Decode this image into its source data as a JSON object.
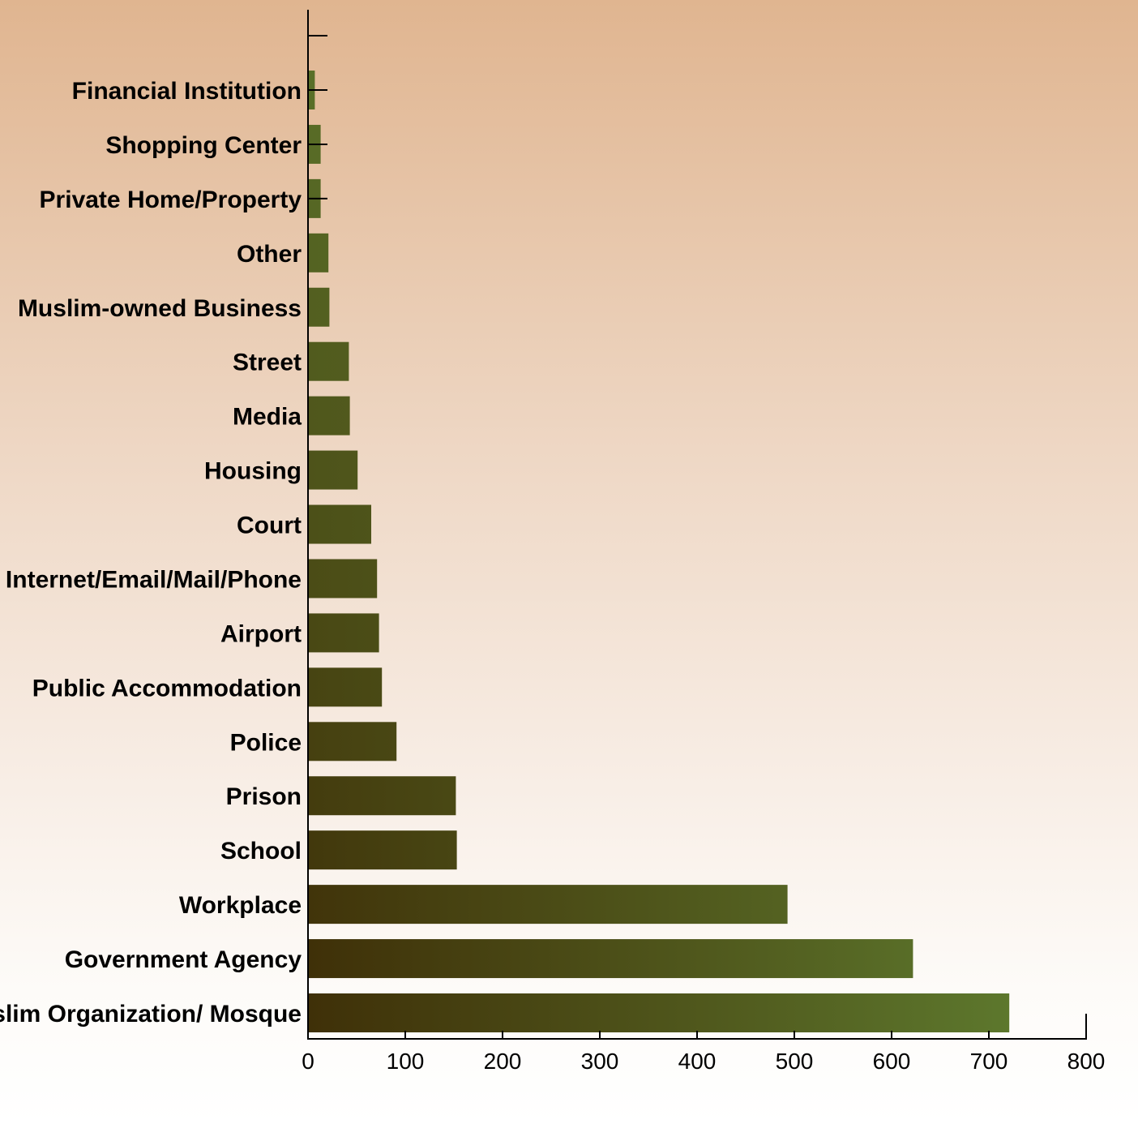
{
  "chart_data": {
    "type": "bar",
    "orientation": "horizontal",
    "title": "",
    "xlabel": "",
    "ylabel": "",
    "xlim": [
      0,
      800
    ],
    "x_ticks": [
      0,
      100,
      200,
      300,
      400,
      500,
      600,
      700,
      800
    ],
    "grid": false,
    "categories": [
      "Financial Institution",
      "Shopping Center",
      "Private Home/Property",
      "Other",
      "Muslim-owned Business",
      "Street",
      "Media",
      "Housing",
      "Court",
      "Internet/Email/Mail/Phone",
      "Airport",
      "Public Accommodation",
      "Police",
      "Prison",
      "School",
      "Workplace",
      "Government Agency",
      "Muslim Organization/ Mosque"
    ],
    "values": [
      7,
      13,
      13,
      21,
      22,
      42,
      43,
      51,
      65,
      71,
      73,
      76,
      91,
      152,
      153,
      493,
      622,
      721
    ],
    "colors": {
      "bar_light": "#5e7a2e",
      "bar_dark": "#3f3008",
      "axis": "#000000"
    }
  }
}
